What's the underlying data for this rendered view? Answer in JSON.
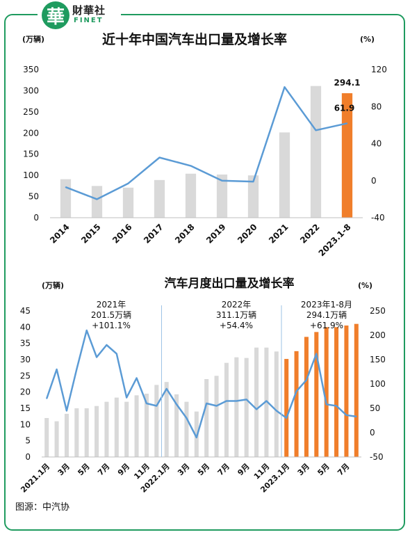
{
  "brand": {
    "logo_char": "華",
    "name": "財華社",
    "sub": "FINET"
  },
  "source": "图源：中汽协",
  "colors": {
    "bar_gray": "#d9d9d9",
    "bar_orange": "#f07e2b",
    "line_blue": "#5b9bd5",
    "frame_green": "#1f9b5f"
  },
  "chart_data": [
    {
      "type": "bar",
      "title": "近十年中国汽车出口量及增长率",
      "ylabel_left": "(万辆)",
      "ylabel_right": "(%)",
      "categories": [
        "2014",
        "2015",
        "2016",
        "2017",
        "2018",
        "2019",
        "2020",
        "2021",
        "2022",
        "2023.1-8"
      ],
      "ylim_left": [
        0,
        350
      ],
      "yticks_left": [
        "0",
        "50",
        "100",
        "150",
        "200",
        "250",
        "300",
        "350"
      ],
      "ylim_right": [
        -40,
        120
      ],
      "yticks_right": [
        "-40",
        "0",
        "40",
        "80",
        "120"
      ],
      "series": [
        {
          "kind": "bar",
          "axis": "left",
          "values": [
            91,
            75,
            71,
            89,
            104,
            102,
            100,
            201.5,
            311.1,
            294.1
          ]
        },
        {
          "kind": "line",
          "axis": "right",
          "values": [
            -7,
            -20,
            -3,
            25,
            16,
            0,
            -1,
            101.1,
            54.4,
            61.9
          ]
        }
      ],
      "highlight_index": 9,
      "annotations": [
        "294.1",
        "61.9"
      ],
      "grid": false
    },
    {
      "type": "bar",
      "title": "汽车月度出口量及增长率",
      "ylabel_left": "(万辆)",
      "ylabel_right": "(%)",
      "categories": [
        "2021.1月",
        "2月",
        "3月",
        "4月",
        "5月",
        "6月",
        "7月",
        "8月",
        "9月",
        "10月",
        "11月",
        "12月",
        "2022.1月",
        "2月",
        "3月",
        "4月",
        "5月",
        "6月",
        "7月",
        "8月",
        "9月",
        "10月",
        "11月",
        "12月",
        "2023.1月",
        "2月",
        "3月",
        "4月",
        "5月",
        "6月",
        "7月",
        "8月"
      ],
      "tick_labels": [
        "2021.1月",
        "3月",
        "5月",
        "7月",
        "9月",
        "11月",
        "2022.1月",
        "3月",
        "5月",
        "7月",
        "9月",
        "11月",
        "2023.1月",
        "3月",
        "5月",
        "7月"
      ],
      "ylim_left": [
        0,
        45
      ],
      "yticks_left": [
        "0",
        "5",
        "10",
        "15",
        "20",
        "25",
        "30",
        "35",
        "40",
        "45"
      ],
      "ylim_right": [
        -50,
        250
      ],
      "yticks_right": [
        "-50",
        "0",
        "50",
        "100",
        "150",
        "200",
        "250"
      ],
      "series": [
        {
          "kind": "bar",
          "axis": "left",
          "values": [
            12,
            11,
            13.3,
            15,
            15,
            15.7,
            17,
            18.3,
            17,
            19,
            19.5,
            22.2,
            23.1,
            19.3,
            17,
            14,
            24,
            25,
            29,
            30.7,
            30.5,
            33.7,
            33.7,
            32.5,
            30.2,
            32.6,
            37,
            38.5,
            40,
            40,
            40.5,
            41
          ]
        },
        {
          "kind": "line",
          "axis": "right",
          "values": [
            70,
            130,
            45,
            130,
            210,
            155,
            180,
            162,
            72,
            112,
            60,
            55,
            90,
            58,
            30,
            -10,
            60,
            55,
            65,
            65,
            68,
            48,
            65,
            45,
            30,
            85,
            108,
            162,
            58,
            55,
            36,
            33
          ]
        }
      ],
      "highlight_from_index": 24,
      "annotation_groups": [
        {
          "title": "2021年",
          "total": "201.5万辆",
          "growth": "+101.1%"
        },
        {
          "title": "2022年",
          "total": "311.1万辆",
          "growth": "+54.4%"
        },
        {
          "title": "2023年1-8月",
          "total": "294.1万辆",
          "growth": "+61.9%"
        }
      ],
      "grid": false
    }
  ]
}
